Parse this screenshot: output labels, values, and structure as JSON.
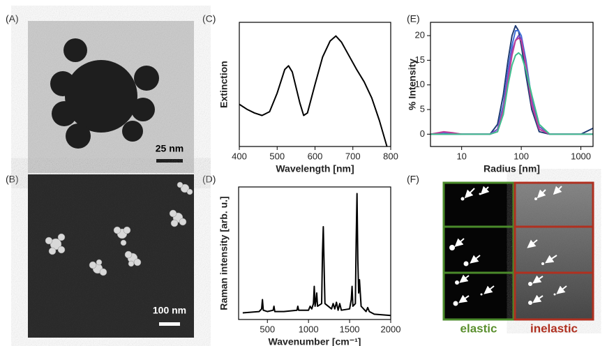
{
  "figure": {
    "panel_labels": [
      "(A)",
      "(B)",
      "(C)",
      "(D)",
      "(E)",
      "(F)"
    ],
    "scale_bars": [
      "25 nm",
      "100 nm"
    ],
    "image_labels": [
      "elastic",
      "inelastic"
    ]
  },
  "chart_data": [
    {
      "type": "line",
      "xlabel": "Wavelength [nm]",
      "ylabel": "Extinction",
      "x": [
        400,
        420,
        440,
        460,
        480,
        500,
        520,
        530,
        540,
        560,
        570,
        580,
        600,
        620,
        640,
        655,
        670,
        690,
        710,
        730,
        750,
        770,
        790
      ],
      "series": [
        {
          "color": "#000000",
          "values": [
            0.34,
            0.3,
            0.27,
            0.25,
            0.28,
            0.43,
            0.62,
            0.65,
            0.6,
            0.35,
            0.25,
            0.27,
            0.5,
            0.72,
            0.85,
            0.89,
            0.84,
            0.73,
            0.62,
            0.52,
            0.39,
            0.21,
            0.0
          ]
        }
      ],
      "xlim": [
        400,
        800
      ],
      "ylim": [
        0,
        1
      ],
      "xticks": [
        400,
        500,
        600,
        700,
        800
      ]
    },
    {
      "type": "line",
      "xlabel": "Wavenumber [cm⁻¹]",
      "ylabel": "Raman intensity [arb. u.]",
      "x": [
        200,
        400,
        430,
        440,
        450,
        500,
        570,
        580,
        590,
        700,
        860,
        870,
        880,
        1000,
        1020,
        1040,
        1060,
        1070,
        1080,
        1090,
        1100,
        1110,
        1160,
        1170,
        1180,
        1190,
        1200,
        1280,
        1300,
        1320,
        1340,
        1360,
        1380,
        1400,
        1500,
        1520,
        1530,
        1540,
        1570,
        1580,
        1590,
        1600,
        1610,
        1620,
        1640,
        1700,
        1720,
        1740,
        1800,
        2000
      ],
      "series": [
        {
          "color": "#000000",
          "values": [
            0.05,
            0.06,
            0.08,
            0.15,
            0.07,
            0.06,
            0.07,
            0.1,
            0.06,
            0.06,
            0.07,
            0.1,
            0.07,
            0.07,
            0.1,
            0.08,
            0.12,
            0.25,
            0.1,
            0.14,
            0.2,
            0.1,
            0.12,
            0.5,
            0.7,
            0.4,
            0.12,
            0.08,
            0.12,
            0.08,
            0.13,
            0.07,
            0.12,
            0.07,
            0.08,
            0.15,
            0.25,
            0.1,
            0.12,
            0.6,
            0.95,
            0.45,
            0.2,
            0.3,
            0.1,
            0.06,
            0.09,
            0.06,
            0.04,
            0.03
          ]
        }
      ],
      "xlim": [
        150,
        2000
      ],
      "ylim": [
        0,
        1
      ],
      "xticks": [
        500,
        1000,
        1500,
        2000
      ]
    },
    {
      "type": "line",
      "xlabel": "Radius [nm]",
      "ylabel": "% Intensity",
      "log_x": true,
      "x": [
        3,
        5,
        7,
        10,
        20,
        30,
        40,
        50,
        60,
        70,
        80,
        90,
        100,
        120,
        150,
        200,
        300,
        500,
        1000,
        1600
      ],
      "series": [
        {
          "color": "#1f3b73",
          "values": [
            0,
            0,
            0,
            0,
            0,
            0,
            2,
            8,
            15,
            20,
            22,
            21,
            18,
            12,
            5,
            0.5,
            0,
            0,
            0,
            1.2
          ]
        },
        {
          "color": "#3f6fd8",
          "values": [
            0,
            0.3,
            0,
            0,
            0,
            0,
            1,
            6,
            13,
            18,
            21,
            21,
            20,
            15,
            7,
            1,
            0,
            0,
            0,
            0
          ]
        },
        {
          "color": "#7a4fc9",
          "values": [
            0,
            0.4,
            0.2,
            0,
            0,
            0,
            1,
            5,
            12,
            17,
            19,
            20,
            19.5,
            14,
            7,
            1.5,
            0,
            0,
            0,
            0
          ]
        },
        {
          "color": "#c0409a",
          "values": [
            0,
            0.5,
            0.3,
            0,
            0,
            0,
            0.5,
            5,
            11,
            16,
            19,
            19.5,
            19,
            14,
            6,
            1,
            0,
            0,
            0,
            0
          ]
        },
        {
          "color": "#3fbf8f",
          "values": [
            0,
            0,
            0,
            0,
            0,
            0,
            0.5,
            4,
            10,
            14,
            16,
            16.5,
            16,
            13,
            8,
            2,
            0,
            0,
            0,
            0
          ]
        }
      ],
      "xlim": [
        3,
        1600
      ],
      "ylim": [
        -2.5,
        22.7
      ],
      "xticks": [
        10,
        100,
        1000
      ],
      "yticks": [
        0,
        5,
        10,
        15,
        20
      ]
    }
  ]
}
